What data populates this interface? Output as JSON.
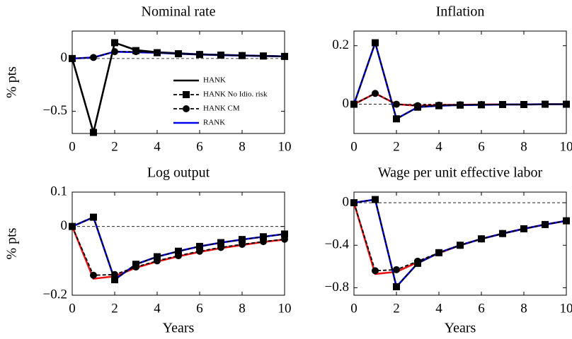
{
  "chart_data": [
    {
      "type": "line",
      "title": "Nominal rate",
      "ylabel": "% pts",
      "legend": "center right",
      "x": [
        0,
        1,
        2,
        3,
        4,
        5,
        6,
        7,
        8,
        9,
        10
      ],
      "xlim": [
        0,
        10
      ],
      "xticks": [
        0,
        2,
        4,
        6,
        8,
        10
      ],
      "ylim": [
        -0.71,
        0.26
      ],
      "yticks": [
        {
          "value": -0.5,
          "label": "−0.5"
        },
        0
      ],
      "reference_line": 0,
      "series": [
        {
          "name": "HANK",
          "color": "#000000",
          "dash": false,
          "marker": null,
          "values": [
            0,
            -0.7,
            0.15,
            0.08,
            0.06,
            0.05,
            0.04,
            0.035,
            0.03,
            0.025,
            0.02
          ]
        },
        {
          "name": "HANK No Idio. risk",
          "color": "#000000",
          "dash": true,
          "marker": "square",
          "values": [
            0,
            -0.7,
            0.15,
            0.075,
            0.055,
            0.045,
            0.038,
            0.032,
            0.028,
            0.024,
            0.02
          ]
        },
        {
          "name": "HANK CM",
          "color": "#000000",
          "dash": true,
          "marker": "circle",
          "values": [
            0,
            0.01,
            0.065,
            0.065,
            0.055,
            0.045,
            0.038,
            0.032,
            0.028,
            0.024,
            0.02
          ]
        },
        {
          "name": "RANK",
          "color": "#0000ee",
          "dash": false,
          "marker": null,
          "values": [
            0,
            0.01,
            0.065,
            0.06,
            0.055,
            0.045,
            0.038,
            0.032,
            0.028,
            0.024,
            0.02
          ]
        }
      ]
    },
    {
      "type": "line",
      "title": "Inflation",
      "x": [
        0,
        1,
        2,
        3,
        4,
        5,
        6,
        7,
        8,
        9,
        10
      ],
      "xlim": [
        0,
        10
      ],
      "xticks": [
        0,
        2,
        4,
        6,
        8,
        10
      ],
      "ylim": [
        -0.1,
        0.25
      ],
      "yticks": [
        0,
        0.2
      ],
      "reference_line": 0,
      "series": [
        {
          "color": "#ee1111",
          "dash": false,
          "marker": null,
          "values": [
            0,
            0.037,
            0,
            -0.005,
            -0.003,
            -0.002,
            -0.001,
            -0.001,
            -0.001,
            0,
            0
          ]
        },
        {
          "color": "#000000",
          "dash": true,
          "marker": "square",
          "values": [
            0,
            0.21,
            -0.05,
            -0.01,
            -0.005,
            -0.003,
            -0.002,
            -0.001,
            -0.001,
            0,
            0
          ]
        },
        {
          "color": "#000000",
          "dash": true,
          "marker": "circle",
          "values": [
            0,
            0.037,
            0,
            -0.005,
            -0.003,
            -0.002,
            -0.001,
            -0.001,
            -0.001,
            0,
            0
          ]
        },
        {
          "color": "#0000ee",
          "dash": false,
          "marker": null,
          "values": [
            0,
            0.21,
            -0.05,
            -0.01,
            -0.005,
            -0.003,
            -0.002,
            -0.001,
            -0.001,
            0,
            0
          ]
        }
      ]
    },
    {
      "type": "line",
      "title": "Log output",
      "ylabel": "% pts",
      "xlabel": "Years",
      "x": [
        0,
        1,
        2,
        3,
        4,
        5,
        6,
        7,
        8,
        9,
        10
      ],
      "xlim": [
        0,
        10
      ],
      "xticks": [
        0,
        2,
        4,
        6,
        8,
        10
      ],
      "ylim": [
        -0.2,
        0.1
      ],
      "yticks": [
        {
          "value": -0.2,
          "label": "−0.2"
        },
        0,
        0.1
      ],
      "reference_line": 0,
      "series": [
        {
          "color": "#ee1111",
          "dash": false,
          "marker": null,
          "values": [
            0,
            -0.152,
            -0.145,
            -0.12,
            -0.102,
            -0.087,
            -0.074,
            -0.063,
            -0.054,
            -0.045,
            -0.038
          ]
        },
        {
          "color": "#000000",
          "dash": true,
          "marker": "square",
          "values": [
            0,
            0.027,
            -0.155,
            -0.11,
            -0.088,
            -0.072,
            -0.058,
            -0.047,
            -0.038,
            -0.03,
            -0.022
          ]
        },
        {
          "color": "#000000",
          "dash": true,
          "marker": "circle",
          "values": [
            0,
            -0.142,
            -0.14,
            -0.118,
            -0.1,
            -0.085,
            -0.072,
            -0.061,
            -0.052,
            -0.044,
            -0.037
          ]
        },
        {
          "color": "#0000ee",
          "dash": false,
          "marker": null,
          "values": [
            0,
            0.027,
            -0.155,
            -0.11,
            -0.088,
            -0.072,
            -0.058,
            -0.047,
            -0.038,
            -0.03,
            -0.022
          ]
        }
      ]
    },
    {
      "type": "line",
      "title": "Wage per unit effective labor",
      "xlabel": "Years",
      "x": [
        0,
        1,
        2,
        3,
        4,
        5,
        6,
        7,
        8,
        9,
        10
      ],
      "xlim": [
        0,
        10
      ],
      "xticks": [
        0,
        2,
        4,
        6,
        8,
        10
      ],
      "ylim": [
        -0.87,
        0.1
      ],
      "yticks": [
        {
          "value": -0.8,
          "label": "−0.8"
        },
        {
          "value": -0.4,
          "label": "−0.4"
        },
        0
      ],
      "reference_line": 0,
      "series": [
        {
          "color": "#ee1111",
          "dash": false,
          "marker": null,
          "values": [
            0,
            -0.67,
            -0.65,
            -0.56,
            -0.475,
            -0.4,
            -0.34,
            -0.29,
            -0.245,
            -0.205,
            -0.17
          ]
        },
        {
          "color": "#000000",
          "dash": true,
          "marker": "square",
          "values": [
            0,
            0.03,
            -0.79,
            -0.57,
            -0.47,
            -0.4,
            -0.34,
            -0.29,
            -0.245,
            -0.205,
            -0.17
          ]
        },
        {
          "color": "#000000",
          "dash": true,
          "marker": "circle",
          "values": [
            0,
            -0.64,
            -0.63,
            -0.55,
            -0.47,
            -0.4,
            -0.34,
            -0.29,
            -0.245,
            -0.205,
            -0.17
          ]
        },
        {
          "color": "#0000ee",
          "dash": false,
          "marker": null,
          "values": [
            0,
            0.03,
            -0.79,
            -0.57,
            -0.47,
            -0.4,
            -0.34,
            -0.29,
            -0.245,
            -0.205,
            -0.17
          ]
        }
      ]
    }
  ]
}
